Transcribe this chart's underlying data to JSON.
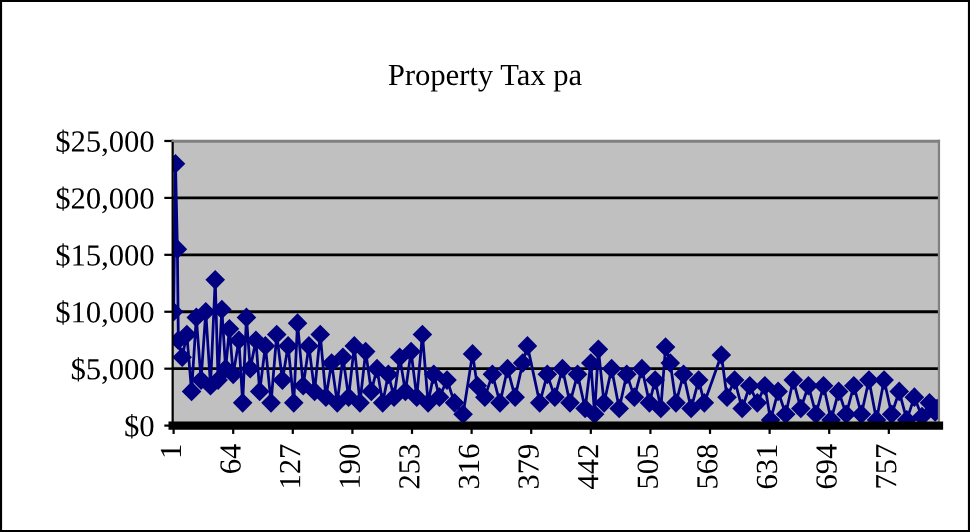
{
  "chart_data": {
    "type": "line",
    "title": "Property Tax pa",
    "xlim": [
      0,
      810
    ],
    "xticks": [
      1,
      64,
      127,
      190,
      253,
      316,
      379,
      442,
      505,
      568,
      631,
      694,
      757
    ],
    "ylim": [
      0,
      25000
    ],
    "yticks": [
      {
        "value": 0,
        "label": "$0"
      },
      {
        "value": 5000,
        "label": "$5,000"
      },
      {
        "value": 10000,
        "label": "$10,000"
      },
      {
        "value": 15000,
        "label": "$15,000"
      },
      {
        "value": 20000,
        "label": "$20,000"
      },
      {
        "value": 25000,
        "label": "$25,000"
      }
    ],
    "grid": "y",
    "marker": "diamond",
    "line_style": "solid",
    "series": [
      {
        "color": "#000080",
        "x": [
          1,
          3,
          5,
          6,
          10,
          15,
          20,
          25,
          30,
          35,
          40,
          45,
          48,
          52,
          56,
          60,
          64,
          70,
          74,
          78,
          82,
          88,
          92,
          98,
          104,
          110,
          116,
          122,
          128,
          132,
          138,
          144,
          150,
          156,
          162,
          168,
          174,
          180,
          186,
          192,
          198,
          204,
          210,
          216,
          222,
          228,
          234,
          240,
          246,
          252,
          258,
          264,
          270,
          276,
          282,
          290,
          298,
          307,
          317,
          322,
          330,
          338,
          346,
          354,
          362,
          370,
          375,
          388,
          396,
          404,
          412,
          420,
          428,
          436,
          442,
          446,
          450,
          456,
          464,
          472,
          480,
          488,
          496,
          504,
          510,
          516,
          521,
          526,
          532,
          540,
          548,
          556,
          562,
          580,
          586,
          594,
          602,
          610,
          618,
          626,
          632,
          640,
          648,
          656,
          664,
          672,
          680,
          688,
          696,
          704,
          712,
          720,
          728,
          736,
          744,
          752,
          760,
          768,
          776,
          784,
          792,
          800,
          806,
          808
        ],
        "values": [
          10000,
          23000,
          15500,
          7500,
          6000,
          8000,
          3000,
          9500,
          4000,
          10000,
          3500,
          12800,
          4000,
          10200,
          5000,
          8500,
          4500,
          7500,
          2000,
          9500,
          5000,
          7500,
          3000,
          7000,
          2000,
          8000,
          4000,
          7000,
          2000,
          9000,
          3500,
          7000,
          3000,
          8000,
          2500,
          5500,
          2000,
          6000,
          2500,
          7000,
          2000,
          6500,
          3000,
          5000,
          2000,
          4500,
          2500,
          6000,
          3000,
          6500,
          2500,
          8000,
          2000,
          4500,
          2500,
          4000,
          2000,
          1000,
          6300,
          3500,
          2500,
          4500,
          2000,
          5000,
          2500,
          5500,
          7000,
          2000,
          4500,
          2500,
          5000,
          2000,
          4500,
          1500,
          5500,
          1000,
          6700,
          2000,
          5000,
          1500,
          4500,
          2500,
          5000,
          2000,
          4000,
          1500,
          6900,
          5500,
          2000,
          4500,
          1500,
          4000,
          2000,
          6200,
          2500,
          4000,
          1500,
          3500,
          2000,
          3500,
          500,
          3000,
          1000,
          4000,
          1500,
          3500,
          1000,
          3500,
          500,
          3000,
          1000,
          3500,
          1000,
          4000,
          500,
          4000,
          1000,
          3000,
          500,
          2500,
          800,
          2000,
          1200,
          1500
        ]
      }
    ]
  }
}
